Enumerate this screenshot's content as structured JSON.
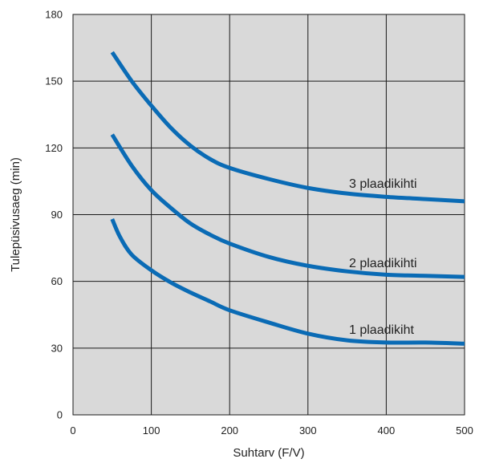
{
  "chart_data": {
    "type": "line",
    "title": "",
    "xlabel": "Suhtarv (F/V)",
    "ylabel": "Tulepüsivusaeg (min)",
    "xlim": [
      0,
      500
    ],
    "ylim": [
      0,
      180
    ],
    "x_ticks": [
      "0",
      "100",
      "200",
      "300",
      "400",
      "500"
    ],
    "y_ticks": [
      "0",
      "30",
      "60",
      "90",
      "120",
      "150",
      "180"
    ],
    "grid": true,
    "plot_background": "#d9d9d9",
    "line_color": "#0a6bb5",
    "series": [
      {
        "name": "3 plaadikihti",
        "x": [
          50,
          75,
          100,
          125,
          150,
          175,
          200,
          250,
          300,
          350,
          400,
          450,
          500
        ],
        "y": [
          163,
          150,
          139,
          129,
          121,
          115,
          111,
          106,
          102,
          99.5,
          98,
          97,
          96
        ]
      },
      {
        "name": "2 plaadikihti",
        "x": [
          50,
          75,
          100,
          125,
          150,
          175,
          200,
          250,
          300,
          350,
          400,
          450,
          500
        ],
        "y": [
          126,
          112,
          101,
          93,
          86,
          81,
          77,
          71,
          67,
          64.5,
          63,
          62.5,
          62
        ]
      },
      {
        "name": "1 plaadikiht",
        "x": [
          50,
          60,
          75,
          100,
          125,
          150,
          175,
          200,
          250,
          300,
          350,
          400,
          450,
          500
        ],
        "y": [
          88,
          80,
          72,
          65,
          59.5,
          55,
          51,
          47,
          41.5,
          36.5,
          33.5,
          32.5,
          32.5,
          32
        ]
      }
    ]
  }
}
